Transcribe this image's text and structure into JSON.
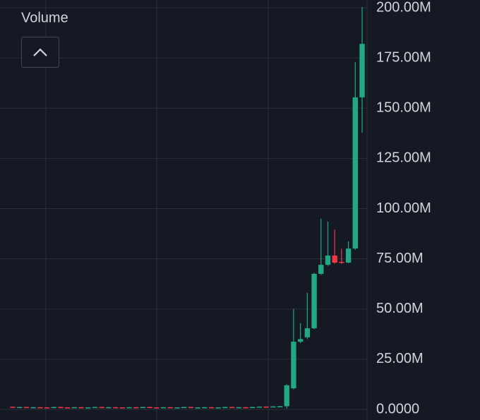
{
  "chart_data": {
    "type": "candlestick",
    "title": "Volume",
    "up_color": "#22a884",
    "down_color": "#f23645",
    "series": [
      {
        "open": [
          1300000.0,
          1000000.0,
          1200000.0,
          900000.0,
          1100000.0,
          1000000.0,
          800000.0,
          1200000.0,
          1000000.0,
          900000.0,
          1100000.0,
          800000.0,
          1000000.0,
          1200000.0,
          900000.0,
          1100000.0,
          1000000.0,
          800000.0,
          1100000.0,
          900000.0,
          1200000.0,
          1000000.0,
          900000.0,
          1100000.0,
          800000.0,
          1000000.0,
          1200000.0,
          900000.0,
          1000000.0,
          1100000.0,
          800000.0,
          1000000.0,
          1200000.0,
          900000.0,
          1100000.0,
          1000000.0,
          1200000.0,
          1400000.0,
          1300000.0,
          1500000.0,
          1600000.0,
          10500000.0,
          33700000.0,
          35900000.0,
          40400000.0,
          67500000.0,
          72000000.0,
          76600000.0,
          73500000.0,
          73100000.0,
          80100000.0,
          155400000.0
        ],
        "high": [
          1400000.0,
          1300000.0,
          1300000.0,
          1200000.0,
          1200000.0,
          1100000.0,
          1300000.0,
          1300000.0,
          1100000.0,
          1200000.0,
          1200000.0,
          1100000.0,
          1300000.0,
          1300000.0,
          1200000.0,
          1200000.0,
          1100000.0,
          1200000.0,
          1200000.0,
          1300000.0,
          1300000.0,
          1100000.0,
          1200000.0,
          1200000.0,
          1100000.0,
          1300000.0,
          1300000.0,
          1100000.0,
          1200000.0,
          1200000.0,
          1100000.0,
          1300000.0,
          1300000.0,
          1200000.0,
          1200000.0,
          1300000.0,
          1500000.0,
          1500000.0,
          1600000.0,
          1700000.0,
          12500000.0,
          50000000.0,
          43000000.0,
          58000000.0,
          68000000.0,
          95000000.0,
          93500000.0,
          89600000.0,
          80000000.0,
          83700000.0,
          173000000.0,
          200400000.0
        ],
        "low": [
          900000.0,
          900000.0,
          800000.0,
          800000.0,
          900000.0,
          700000.0,
          700000.0,
          900000.0,
          800000.0,
          800000.0,
          700000.0,
          700000.0,
          900000.0,
          800000.0,
          800000.0,
          900000.0,
          700000.0,
          700000.0,
          800000.0,
          800000.0,
          900000.0,
          800000.0,
          800000.0,
          700000.0,
          700000.0,
          900000.0,
          800000.0,
          800000.0,
          900000.0,
          700000.0,
          700000.0,
          900000.0,
          800000.0,
          800000.0,
          900000.0,
          900000.0,
          1100000.0,
          1200000.0,
          1200000.0,
          1400000.0,
          500000.0,
          10000000.0,
          33000000.0,
          35000000.0,
          40000000.0,
          67000000.0,
          71500000.0,
          72500000.0,
          72500000.0,
          72800000.0,
          79500000.0,
          137800000.0
        ],
        "close": [
          1000000.0,
          1200000.0,
          900000.0,
          1100000.0,
          1000000.0,
          800000.0,
          1200000.0,
          1000000.0,
          900000.0,
          1100000.0,
          800000.0,
          1000000.0,
          1200000.0,
          900000.0,
          1100000.0,
          1000000.0,
          800000.0,
          1100000.0,
          900000.0,
          1200000.0,
          1000000.0,
          900000.0,
          1100000.0,
          800000.0,
          1000000.0,
          1200000.0,
          900000.0,
          1000000.0,
          1100000.0,
          800000.0,
          1000000.0,
          1200000.0,
          900000.0,
          1100000.0,
          1000000.0,
          1200000.0,
          1400000.0,
          1300000.0,
          1500000.0,
          1600000.0,
          12000000.0,
          33700000.0,
          35000000.0,
          40400000.0,
          67500000.0,
          72000000.0,
          76600000.0,
          73100000.0,
          73000000.0,
          80100000.0,
          155400000.0,
          182000000.0
        ]
      }
    ],
    "ylim": [
      0,
      200000000
    ],
    "yticks": [
      {
        "value": 0,
        "label": "0.0000"
      },
      {
        "value": 25000000,
        "label": "25.00M"
      },
      {
        "value": 50000000,
        "label": "50.00M"
      },
      {
        "value": 75000000,
        "label": "75.00M"
      },
      {
        "value": 100000000,
        "label": "100.00M"
      },
      {
        "value": 125000000,
        "label": "125.00M"
      },
      {
        "value": 150000000,
        "label": "150.00M"
      },
      {
        "value": 175000000,
        "label": "175.00M"
      },
      {
        "value": 200000000,
        "label": "200.00M"
      }
    ],
    "grid": true
  }
}
